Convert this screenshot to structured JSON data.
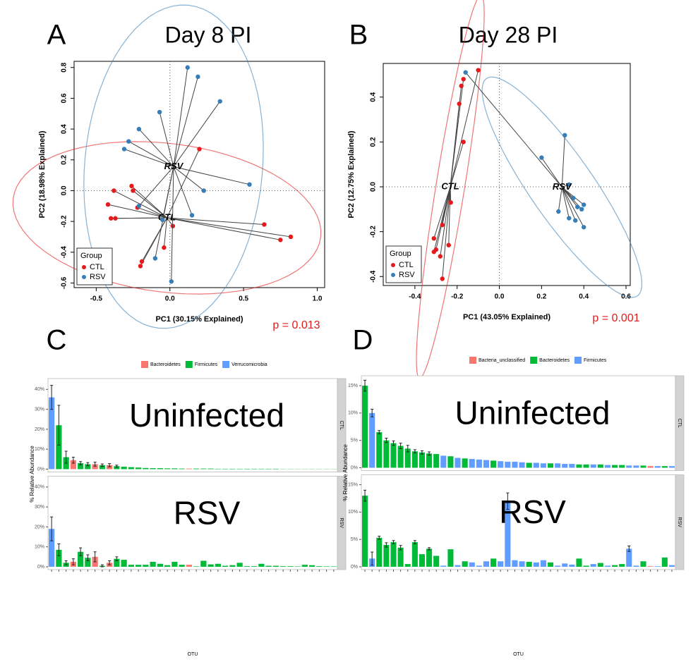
{
  "chart_data": [
    {
      "type": "scatter",
      "panel": "A",
      "title": "Day 8 PI",
      "xlabel": "PC1 (30.15% Explained)",
      "ylabel": "PC2 (18.98% Explained)",
      "xlim": [
        -0.65,
        1.05
      ],
      "ylim": [
        -0.63,
        0.84
      ],
      "xticks": [
        -0.5,
        {
          "value": 0,
          "label": "0.0"
        },
        0.5,
        {
          "value": 1,
          "label": "1.0"
        }
      ],
      "yticks": [
        -0.6,
        -0.4,
        -0.2,
        {
          "value": 0,
          "label": "0.0"
        },
        0.2,
        0.4,
        0.6,
        0.8
      ],
      "zero_lines": true,
      "legend_title": "Group",
      "legend": "bottom-left",
      "annotation": "p = 0.013",
      "series": [
        {
          "name": "CTL",
          "color": "#e41a1c",
          "x": [
            -0.38,
            -0.26,
            -0.25,
            -0.42,
            -0.4,
            -0.37,
            -0.22,
            0.02,
            -0.19,
            -0.2,
            0.2,
            0.64,
            0.75,
            0.82,
            -0.04
          ],
          "y": [
            0.0,
            0.03,
            0.0,
            -0.09,
            -0.18,
            -0.18,
            -0.11,
            -0.23,
            -0.46,
            -0.49,
            0.27,
            -0.22,
            -0.32,
            -0.3,
            -0.37
          ]
        },
        {
          "name": "RSV",
          "color": "#377eb8",
          "x": [
            0.12,
            0.19,
            -0.07,
            0.34,
            -0.21,
            -0.28,
            -0.31,
            0.54,
            0.23,
            0.15,
            -0.21,
            -0.1,
            0.01,
            -0.05
          ],
          "y": [
            0.8,
            0.74,
            0.51,
            0.58,
            0.4,
            0.32,
            0.27,
            0.04,
            0.0,
            -0.16,
            -0.1,
            -0.44,
            -0.59,
            -0.19
          ]
        }
      ]
    },
    {
      "type": "scatter",
      "panel": "B",
      "title": "Day 28 PI",
      "xlabel": "PC1 (43.05% Explained)",
      "ylabel": "PC2 (12.75% Explained)",
      "xlim": [
        -0.55,
        0.62
      ],
      "ylim": [
        -0.44,
        0.55
      ],
      "xticks": [
        -0.4,
        -0.2,
        {
          "value": 0,
          "label": "0.0"
        },
        0.2,
        0.4,
        0.6
      ],
      "yticks": [
        -0.4,
        -0.2,
        {
          "value": 0,
          "label": "0.0"
        },
        0.2,
        0.4
      ],
      "zero_lines": true,
      "legend_title": "Group",
      "legend": "bottom-left",
      "annotation": "p = 0.001",
      "series": [
        {
          "name": "CTL",
          "color": "#e41a1c",
          "x": [
            -0.1,
            -0.17,
            -0.18,
            -0.19,
            -0.17,
            -0.23,
            -0.31,
            -0.3,
            -0.31,
            -0.28,
            -0.24,
            -0.27,
            -0.27
          ],
          "y": [
            0.52,
            0.48,
            0.45,
            0.37,
            0.2,
            -0.07,
            -0.23,
            -0.28,
            -0.29,
            -0.31,
            -0.26,
            -0.41,
            -0.17
          ]
        },
        {
          "name": "RSV",
          "color": "#377eb8",
          "x": [
            -0.16,
            0.31,
            0.2,
            0.33,
            0.35,
            0.4,
            0.39,
            0.37,
            0.28,
            0.33,
            0.36,
            0.4
          ],
          "y": [
            0.51,
            0.23,
            0.13,
            0.01,
            -0.05,
            -0.08,
            -0.1,
            -0.09,
            -0.11,
            -0.14,
            -0.15,
            -0.18
          ]
        }
      ]
    },
    {
      "type": "bar",
      "panel": "C",
      "xlabel": "OTU",
      "ylabel": "% Relative Abundance",
      "legend": [
        {
          "name": "Bacteroidetes",
          "color": "#F8766D"
        },
        {
          "name": "Firmicutes",
          "color": "#00BA38"
        },
        {
          "name": "Verrucomicrobia",
          "color": "#619CFF"
        }
      ],
      "ylim": [
        0,
        44
      ],
      "yticks": [
        {
          "value": 0,
          "label": "0%"
        },
        {
          "value": 10,
          "label": "10%"
        },
        {
          "value": 20,
          "label": "20%"
        },
        {
          "value": 30,
          "label": "30%"
        },
        {
          "value": 40,
          "label": "40%"
        }
      ],
      "categories": [
        null,
        null,
        null,
        null,
        null,
        null,
        null,
        null,
        null,
        null,
        null,
        null,
        null,
        null,
        null,
        null,
        null,
        null,
        null,
        null,
        null,
        null,
        null,
        null,
        null,
        null,
        null,
        null,
        null,
        null,
        null,
        null,
        null,
        null,
        null,
        null,
        null,
        null,
        null,
        null
      ],
      "bar_colors": [
        "#619CFF",
        "#00BA38",
        "#00BA38",
        "#F8766D",
        "#00BA38",
        "#00BA38",
        "#F8766D",
        "#00BA38",
        "#F8766D",
        "#00BA38",
        "#00BA38",
        "#00BA38",
        "#00BA38",
        "#00BA38",
        "#00BA38",
        "#00BA38",
        "#00BA38",
        "#00BA38",
        "#00BA38",
        "#F8766D",
        "#00BA38",
        "#00BA38",
        "#00BA38",
        "#00BA38",
        "#00BA38",
        "#00BA38",
        "#00BA38",
        "#00BA38",
        "#00BA38",
        "#00BA38",
        "#00BA38",
        "#00BA38",
        "#00BA38",
        "#00BA38",
        "#00BA38",
        "#00BA38",
        "#00BA38",
        "#00BA38",
        "#00BA38",
        "#00BA38"
      ],
      "facets": [
        {
          "strip": "CTL",
          "annotation": "Uninfected",
          "values": [
            36,
            22,
            6,
            4.5,
            3,
            2.5,
            2.5,
            2,
            2,
            1.5,
            1.2,
            1,
            0.8,
            0.6,
            0.5,
            0.5,
            0.4,
            0.4,
            0.3,
            0.3,
            0.3,
            0.3,
            0.3,
            0.2,
            0.2,
            0.2,
            0.2,
            0.2,
            0.2,
            0.2,
            0.2,
            0.2,
            0.1,
            0.1,
            0.1,
            0.1,
            0.1,
            0.1,
            0.1,
            0.1
          ],
          "errors": [
            6,
            10,
            3,
            1.5,
            0.8,
            0.8,
            1,
            0.6,
            0.8,
            0.5,
            null,
            null,
            null,
            null,
            null,
            null,
            null,
            null,
            null,
            null,
            null,
            null,
            null,
            null,
            null,
            null,
            null,
            null,
            null,
            null,
            null,
            null,
            null,
            null,
            null,
            null,
            null,
            null,
            null,
            null
          ]
        },
        {
          "strip": "RSV",
          "annotation": "RSV",
          "values": [
            19,
            8.5,
            2,
            2.5,
            7.5,
            4.5,
            5,
            0.5,
            2,
            4,
            3.5,
            1,
            1,
            1,
            2.5,
            1.5,
            0.8,
            2.5,
            1,
            1,
            0.2,
            3,
            1.2,
            1.5,
            0.5,
            0.8,
            2,
            0.3,
            0.3,
            1.5,
            0.5,
            0.5,
            0.3,
            0.3,
            0.2,
            1,
            0.8,
            0.3,
            0.2,
            0.2
          ],
          "errors": [
            6,
            3,
            1,
            1.5,
            2,
            1.5,
            2.5,
            0.5,
            1,
            1,
            null,
            null,
            null,
            null,
            null,
            null,
            null,
            null,
            null,
            null,
            null,
            null,
            null,
            null,
            null,
            null,
            null,
            null,
            null,
            null,
            null,
            null,
            null,
            null,
            null,
            null,
            null,
            null,
            null,
            null
          ]
        }
      ]
    },
    {
      "type": "bar",
      "panel": "D",
      "xlabel": "OTU",
      "ylabel": "% Relative Abundance",
      "legend": [
        {
          "name": "Bacteria_unclassified",
          "color": "#F8766D"
        },
        {
          "name": "Bacteroidetes",
          "color": "#00BA38"
        },
        {
          "name": "Firmicutes",
          "color": "#619CFF"
        }
      ],
      "ylim": [
        0,
        16.3
      ],
      "yticks": [
        {
          "value": 0,
          "label": "0%"
        },
        {
          "value": 5,
          "label": "5%"
        },
        {
          "value": 10,
          "label": "10%"
        },
        {
          "value": 15,
          "label": "15%"
        }
      ],
      "categories": [
        null,
        null,
        null,
        null,
        null,
        null,
        null,
        null,
        null,
        null,
        null,
        null,
        null,
        null,
        null,
        null,
        null,
        null,
        null,
        null,
        null,
        null,
        null,
        null,
        null,
        null,
        null,
        null,
        null,
        null,
        null,
        null,
        null,
        null,
        null,
        null,
        null,
        null,
        null,
        null,
        null,
        null,
        null,
        null
      ],
      "bar_colors": [
        "#00BA38",
        "#619CFF",
        "#00BA38",
        "#00BA38",
        "#00BA38",
        "#00BA38",
        "#00BA38",
        "#00BA38",
        "#00BA38",
        "#00BA38",
        "#00BA38",
        "#619CFF",
        "#00BA38",
        "#619CFF",
        "#00BA38",
        "#619CFF",
        "#619CFF",
        "#619CFF",
        "#00BA38",
        "#619CFF",
        "#619CFF",
        "#619CFF",
        "#619CFF",
        "#00BA38",
        "#619CFF",
        "#619CFF",
        "#00BA38",
        "#619CFF",
        "#619CFF",
        "#619CFF",
        "#00BA38",
        "#00BA38",
        "#619CFF",
        "#00BA38",
        "#619CFF",
        "#00BA38",
        "#00BA38",
        "#619CFF",
        "#619CFF",
        "#00BA38",
        "#F8766D",
        "#619CFF",
        "#00BA38",
        "#619CFF"
      ],
      "facets": [
        {
          "strip": "CTL",
          "annotation": "Uninfected",
          "values": [
            15,
            10,
            6.5,
            5,
            4.5,
            4,
            3.5,
            3,
            2.8,
            2.6,
            2.5,
            2.2,
            2.1,
            1.8,
            1.7,
            1.6,
            1.5,
            1.4,
            1.3,
            1.2,
            1.1,
            1.1,
            1,
            0.9,
            0.9,
            0.8,
            0.8,
            0.8,
            0.7,
            0.7,
            0.6,
            0.6,
            0.6,
            0.6,
            0.5,
            0.5,
            0.5,
            0.4,
            0.4,
            0.4,
            0.3,
            0.3,
            0.3,
            0.3
          ],
          "errors": [
            1,
            0.7,
            0.3,
            0.4,
            0.4,
            0.5,
            0.6,
            0.3,
            0.3,
            0.3,
            null,
            null,
            null,
            null,
            null,
            null,
            null,
            null,
            null,
            null,
            null,
            null,
            null,
            null,
            null,
            null,
            null,
            null,
            null,
            null,
            null,
            null,
            null,
            null,
            null,
            null,
            null,
            null,
            null,
            null,
            null,
            null,
            null,
            null
          ]
        },
        {
          "strip": "RSV",
          "annotation": "RSV",
          "values": [
            13,
            1.5,
            5.3,
            4,
            4.5,
            3.5,
            0.5,
            4.5,
            2.3,
            3.3,
            2,
            0.2,
            3.2,
            0.3,
            1,
            0.8,
            0.2,
            1,
            1.5,
            1,
            12,
            1.2,
            1,
            0.9,
            0.8,
            1.2,
            0.8,
            0.2,
            0.6,
            0.4,
            1.5,
            0.2,
            0.5,
            0.7,
            0.2,
            0.3,
            0.5,
            3.3,
            0.2,
            1,
            0.1,
            0.1,
            1.7,
            0.3
          ],
          "errors": [
            1,
            1.2,
            0.3,
            0.4,
            0.3,
            0.4,
            null,
            0.3,
            null,
            0.2,
            null,
            null,
            null,
            null,
            null,
            null,
            null,
            null,
            null,
            null,
            1.5,
            null,
            null,
            null,
            null,
            null,
            null,
            null,
            null,
            null,
            null,
            null,
            null,
            null,
            null,
            null,
            null,
            0.5,
            null,
            null,
            null,
            null,
            null,
            null
          ]
        }
      ]
    }
  ]
}
